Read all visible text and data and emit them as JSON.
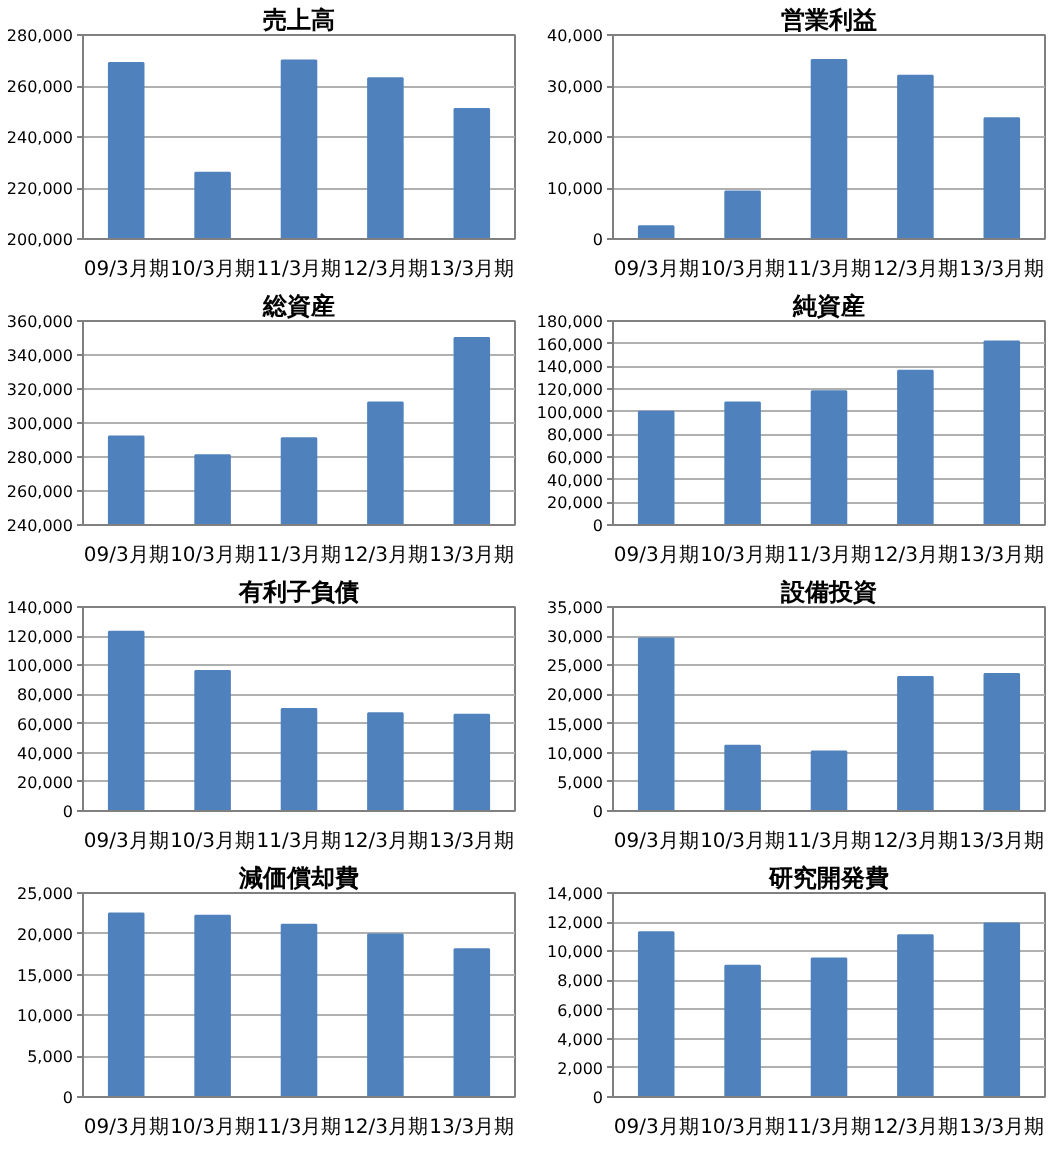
{
  "chart_data": [
    {
      "type": "bar",
      "title": "売上高",
      "categories": [
        "09/3月期",
        "10/3月期",
        "11/3月期",
        "12/3月期",
        "13/3月期"
      ],
      "values": [
        269000,
        226000,
        270000,
        263000,
        251000
      ],
      "color": "#4f81bd",
      "ylim": [
        200000,
        280000
      ],
      "yticks": [
        {
          "value": 200000,
          "label": "200,000"
        },
        {
          "value": 220000,
          "label": "220,000"
        },
        {
          "value": 240000,
          "label": "240,000"
        },
        {
          "value": 260000,
          "label": "260,000"
        },
        {
          "value": 280000,
          "label": "280,000"
        }
      ],
      "grid": "y"
    },
    {
      "type": "bar",
      "title": "営業利益",
      "categories": [
        "09/3月期",
        "10/3月期",
        "11/3月期",
        "12/3月期",
        "13/3月期"
      ],
      "values": [
        2500,
        9300,
        35100,
        32000,
        23700
      ],
      "color": "#4f81bd",
      "ylim": [
        0,
        40000
      ],
      "yticks": [
        0,
        {
          "value": 10000,
          "label": "10,000"
        },
        {
          "value": 20000,
          "label": "20,000"
        },
        {
          "value": 30000,
          "label": "30,000"
        },
        {
          "value": 40000,
          "label": "40,000"
        }
      ],
      "grid": "y"
    },
    {
      "type": "bar",
      "title": "総資産",
      "categories": [
        "09/3月期",
        "10/3月期",
        "11/3月期",
        "12/3月期",
        "13/3月期"
      ],
      "values": [
        292000,
        281000,
        291000,
        312000,
        350000
      ],
      "color": "#4f81bd",
      "ylim": [
        240000,
        360000
      ],
      "yticks": [
        {
          "value": 240000,
          "label": "240,000"
        },
        {
          "value": 260000,
          "label": "260,000"
        },
        {
          "value": 280000,
          "label": "280,000"
        },
        {
          "value": 300000,
          "label": "300,000"
        },
        {
          "value": 320000,
          "label": "320,000"
        },
        {
          "value": 340000,
          "label": "340,000"
        },
        {
          "value": 360000,
          "label": "360,000"
        }
      ],
      "grid": "y"
    },
    {
      "type": "bar",
      "title": "純資産",
      "categories": [
        "09/3月期",
        "10/3月期",
        "11/3月期",
        "12/3月期",
        "13/3月期"
      ],
      "values": [
        100000,
        108000,
        118000,
        136000,
        162000
      ],
      "color": "#4f81bd",
      "ylim": [
        0,
        180000
      ],
      "yticks": [
        0,
        {
          "value": 20000,
          "label": "20,000"
        },
        {
          "value": 40000,
          "label": "40,000"
        },
        {
          "value": 60000,
          "label": "60,000"
        },
        {
          "value": 80000,
          "label": "80,000"
        },
        {
          "value": 100000,
          "label": "100,000"
        },
        {
          "value": 120000,
          "label": "120,000"
        },
        {
          "value": 140000,
          "label": "140,000"
        },
        {
          "value": 160000,
          "label": "160,000"
        },
        {
          "value": 180000,
          "label": "180,000"
        }
      ],
      "grid": "y"
    },
    {
      "type": "bar",
      "title": "有利子負債",
      "categories": [
        "09/3月期",
        "10/3月期",
        "11/3月期",
        "12/3月期",
        "13/3月期"
      ],
      "values": [
        123000,
        96000,
        70000,
        67000,
        66000
      ],
      "color": "#4f81bd",
      "ylim": [
        0,
        140000
      ],
      "yticks": [
        0,
        {
          "value": 20000,
          "label": "20,000"
        },
        {
          "value": 40000,
          "label": "40,000"
        },
        {
          "value": 60000,
          "label": "60,000"
        },
        {
          "value": 80000,
          "label": "80,000"
        },
        {
          "value": 100000,
          "label": "100,000"
        },
        {
          "value": 120000,
          "label": "120,000"
        },
        {
          "value": 140000,
          "label": "140,000"
        }
      ],
      "grid": "y"
    },
    {
      "type": "bar",
      "title": "設備投資",
      "categories": [
        "09/3月期",
        "10/3月期",
        "11/3月期",
        "12/3月期",
        "13/3月期"
      ],
      "values": [
        29600,
        11200,
        10200,
        23000,
        23500
      ],
      "color": "#4f81bd",
      "ylim": [
        0,
        35000
      ],
      "yticks": [
        0,
        {
          "value": 5000,
          "label": "5,000"
        },
        {
          "value": 10000,
          "label": "10,000"
        },
        {
          "value": 15000,
          "label": "15,000"
        },
        {
          "value": 20000,
          "label": "20,000"
        },
        {
          "value": 25000,
          "label": "25,000"
        },
        {
          "value": 30000,
          "label": "30,000"
        },
        {
          "value": 35000,
          "label": "35,000"
        }
      ],
      "grid": "y"
    },
    {
      "type": "bar",
      "title": "減価償却費",
      "categories": [
        "09/3月期",
        "10/3月期",
        "11/3月期",
        "12/3月期",
        "13/3月期"
      ],
      "values": [
        22500,
        22200,
        21100,
        19900,
        18100
      ],
      "color": "#4f81bd",
      "ylim": [
        0,
        25000
      ],
      "yticks": [
        0,
        {
          "value": 5000,
          "label": "5,000"
        },
        {
          "value": 10000,
          "label": "10,000"
        },
        {
          "value": 15000,
          "label": "15,000"
        },
        {
          "value": 20000,
          "label": "20,000"
        },
        {
          "value": 25000,
          "label": "25,000"
        }
      ],
      "grid": "y"
    },
    {
      "type": "bar",
      "title": "研究開発費",
      "categories": [
        "09/3月期",
        "10/3月期",
        "11/3月期",
        "12/3月期",
        "13/3月期"
      ],
      "values": [
        11300,
        9000,
        9500,
        11100,
        11900
      ],
      "color": "#4f81bd",
      "ylim": [
        0,
        14000
      ],
      "yticks": [
        0,
        {
          "value": 2000,
          "label": "2,000"
        },
        {
          "value": 4000,
          "label": "4,000"
        },
        {
          "value": 6000,
          "label": "6,000"
        },
        {
          "value": 8000,
          "label": "8,000"
        },
        {
          "value": 10000,
          "label": "10,000"
        },
        {
          "value": 12000,
          "label": "12,000"
        },
        {
          "value": 14000,
          "label": "14,000"
        }
      ],
      "grid": "y"
    }
  ]
}
